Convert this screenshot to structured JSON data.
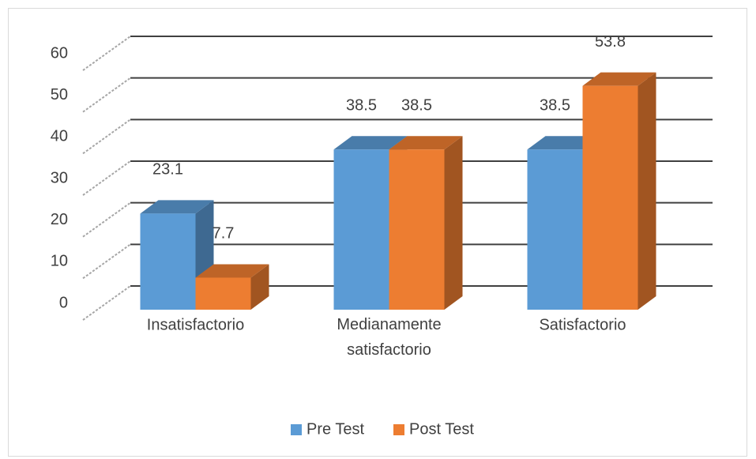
{
  "chart_data": {
    "type": "bar3d",
    "categories": [
      "Insatisfactorio",
      "Medianamente satisfactorio",
      "Satisfactorio"
    ],
    "series": [
      {
        "name": "Pre Test",
        "color": "#5b9bd5",
        "values": [
          23.1,
          38.5,
          38.5
        ]
      },
      {
        "name": "Post Test",
        "color": "#ed7d31",
        "values": [
          7.7,
          38.5,
          53.8
        ]
      }
    ],
    "ylim": [
      0,
      60
    ],
    "yticks": [
      0,
      10,
      20,
      30,
      40,
      50,
      60
    ],
    "grid": true,
    "legend": "bottom"
  }
}
